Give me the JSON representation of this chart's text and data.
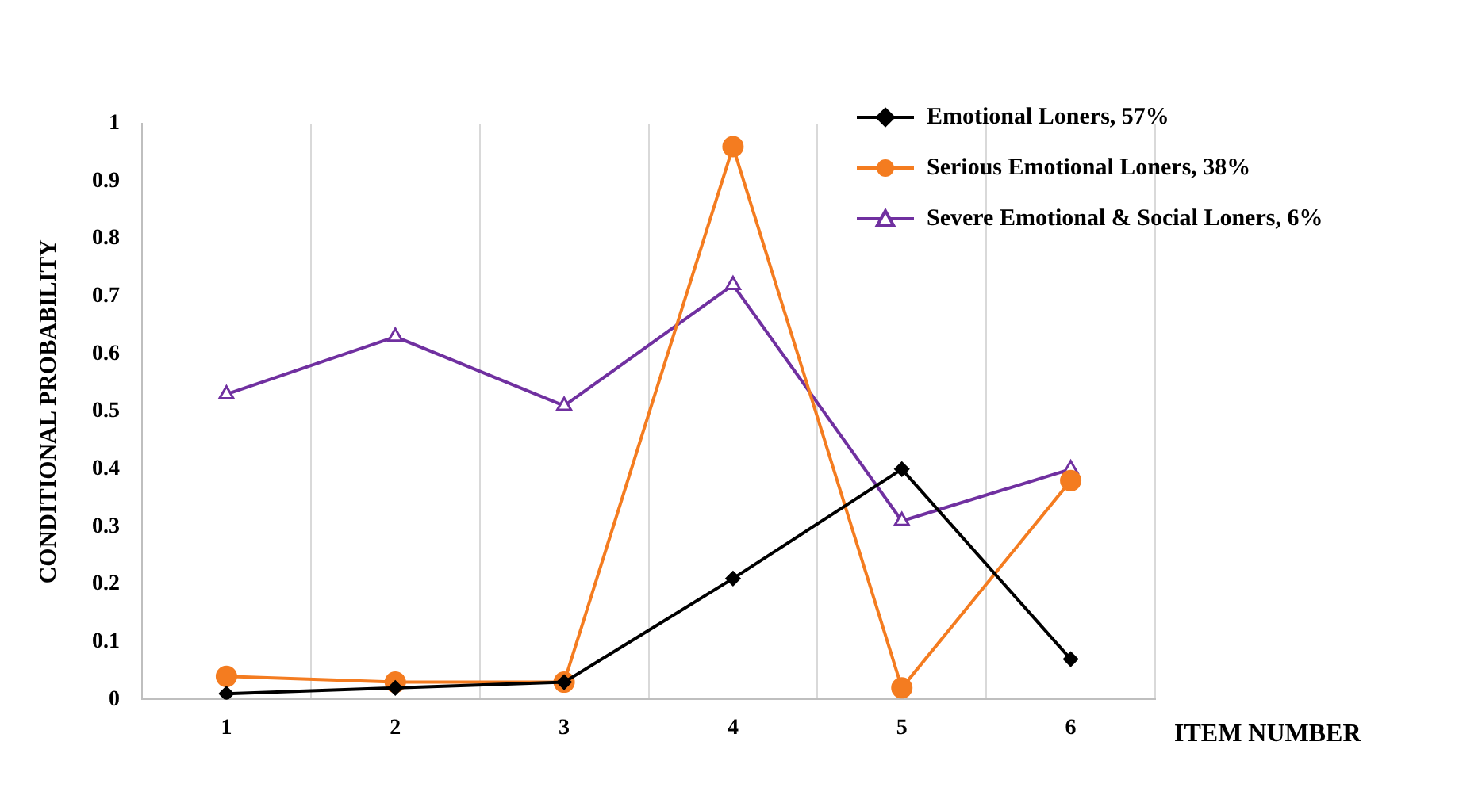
{
  "chart_data": {
    "type": "line",
    "categories": [
      "1",
      "2",
      "3",
      "4",
      "5",
      "6"
    ],
    "xlabel": "ITEM NUMBER",
    "ylabel": "CONDITIONAL PROBABILITY",
    "ylim": [
      0,
      1
    ],
    "yticks": [
      0,
      0.1,
      0.2,
      0.3,
      0.4,
      0.5,
      0.6,
      0.7,
      0.8,
      0.9,
      1
    ],
    "grid": "x",
    "legend": "top right",
    "series": [
      {
        "name": "Emotional Loners, 57%",
        "color": "#000000",
        "marker": "diamond",
        "values": [
          0.01,
          0.02,
          0.03,
          0.21,
          0.4,
          0.07
        ]
      },
      {
        "name": "Serious Emotional Loners, 38%",
        "color": "#f47c20",
        "marker": "circle",
        "values": [
          0.04,
          0.03,
          0.03,
          0.96,
          0.02,
          0.38
        ]
      },
      {
        "name": "Severe Emotional & Social Loners, 6%",
        "color": "#7030a0",
        "marker": "triangle",
        "values": [
          0.53,
          0.63,
          0.51,
          0.72,
          0.31,
          0.4
        ]
      }
    ]
  }
}
